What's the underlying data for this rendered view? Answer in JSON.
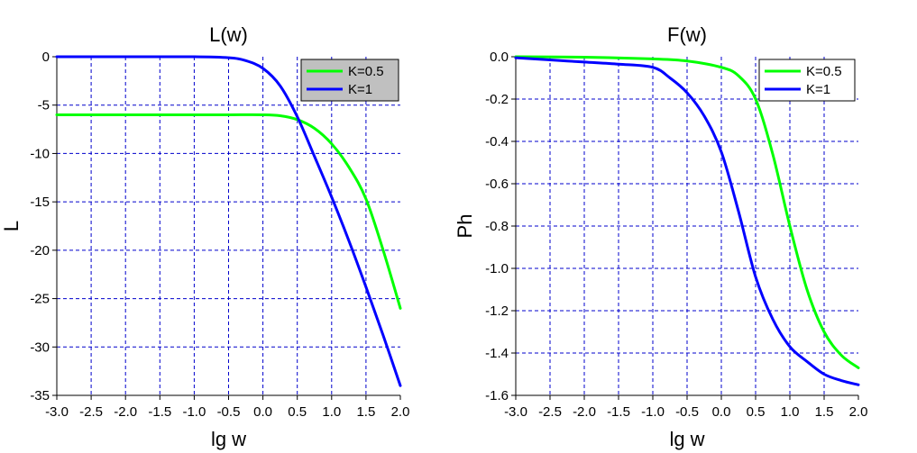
{
  "chart_data": [
    {
      "type": "line",
      "title": "L(w)",
      "xlabel": "lg w",
      "ylabel": "L",
      "xlim": [
        -3.0,
        2.0
      ],
      "ylim": [
        -35,
        0
      ],
      "x_ticks": [
        "-3.0",
        "-2.5",
        "-2.0",
        "-1.5",
        "-1.0",
        "-0.5",
        "0.0",
        "0.5",
        "1.0",
        "1.5",
        "2.0"
      ],
      "y_ticks": [
        "0",
        "-5",
        "-10",
        "-15",
        "-20",
        "-25",
        "-30",
        "-35"
      ],
      "x_tick_values": [
        -3.0,
        -2.5,
        -2.0,
        -1.5,
        -1.0,
        -0.5,
        0.0,
        0.5,
        1.0,
        1.5,
        2.0
      ],
      "y_tick_values": [
        0,
        -5,
        -10,
        -15,
        -20,
        -25,
        -30,
        -35
      ],
      "grid": true,
      "legend": "top-right",
      "legend_background": "#c0c0c0",
      "series": [
        {
          "name": "K=0.5",
          "color": "#00ff00",
          "points": [
            [
              -3.0,
              -6.0
            ],
            [
              -2.0,
              -6.0
            ],
            [
              -1.0,
              -6.0
            ],
            [
              -0.5,
              -6.0
            ],
            [
              0.0,
              -6.0
            ],
            [
              0.25,
              -6.1
            ],
            [
              0.5,
              -6.5
            ],
            [
              0.75,
              -7.4
            ],
            [
              1.0,
              -9.0
            ],
            [
              1.25,
              -11.4
            ],
            [
              1.5,
              -14.7
            ],
            [
              1.75,
              -20.0
            ],
            [
              2.0,
              -26.0
            ]
          ]
        },
        {
          "name": "K=1",
          "color": "#0000ff",
          "points": [
            [
              -3.0,
              0.0
            ],
            [
              -2.0,
              0.0
            ],
            [
              -1.0,
              0.0
            ],
            [
              -0.5,
              -0.1
            ],
            [
              -0.25,
              -0.4
            ],
            [
              0.0,
              -1.2
            ],
            [
              0.25,
              -3.0
            ],
            [
              0.5,
              -6.2
            ],
            [
              0.75,
              -10.3
            ],
            [
              1.0,
              -14.5
            ],
            [
              1.25,
              -19.0
            ],
            [
              1.5,
              -23.8
            ],
            [
              1.75,
              -28.8
            ],
            [
              2.0,
              -34.0
            ]
          ]
        }
      ]
    },
    {
      "type": "line",
      "title": "F(w)",
      "xlabel": "lg w",
      "ylabel": "Ph",
      "xlim": [
        -3.0,
        2.0
      ],
      "ylim": [
        -1.6,
        0.0
      ],
      "x_ticks": [
        "-3.0",
        "-2.5",
        "-2.0",
        "-1.5",
        "-1.0",
        "-0.5",
        "0.0",
        "0.5",
        "1.0",
        "1.5",
        "2.0"
      ],
      "y_ticks": [
        "0.0",
        "-0.2",
        "-0.4",
        "-0.6",
        "-0.8",
        "-1.0",
        "-1.2",
        "-1.4",
        "-1.6"
      ],
      "x_tick_values": [
        -3.0,
        -2.5,
        -2.0,
        -1.5,
        -1.0,
        -0.5,
        0.0,
        0.5,
        1.0,
        1.5,
        2.0
      ],
      "y_tick_values": [
        0.0,
        -0.2,
        -0.4,
        -0.6,
        -0.8,
        -1.0,
        -1.2,
        -1.4,
        -1.6
      ],
      "grid": true,
      "legend": "top-right",
      "legend_background": "#ffffff",
      "series": [
        {
          "name": "K=0.5",
          "color": "#00ff00",
          "points": [
            [
              -3.0,
              0.0
            ],
            [
              -2.0,
              -0.002
            ],
            [
              -1.0,
              -0.01
            ],
            [
              -0.5,
              -0.02
            ],
            [
              0.0,
              -0.05
            ],
            [
              0.25,
              -0.09
            ],
            [
              0.5,
              -0.2
            ],
            [
              0.75,
              -0.46
            ],
            [
              1.0,
              -0.8
            ],
            [
              1.25,
              -1.1
            ],
            [
              1.5,
              -1.3
            ],
            [
              1.75,
              -1.41
            ],
            [
              2.0,
              -1.47
            ]
          ]
        },
        {
          "name": "K=1",
          "color": "#0000ff",
          "points": [
            [
              -3.0,
              -0.005
            ],
            [
              -2.5,
              -0.015
            ],
            [
              -2.0,
              -0.025
            ],
            [
              -1.5,
              -0.035
            ],
            [
              -1.0,
              -0.05
            ],
            [
              -0.75,
              -0.1
            ],
            [
              -0.5,
              -0.17
            ],
            [
              -0.25,
              -0.28
            ],
            [
              0.0,
              -0.45
            ],
            [
              0.25,
              -0.73
            ],
            [
              0.5,
              -1.04
            ],
            [
              0.75,
              -1.24
            ],
            [
              1.0,
              -1.37
            ],
            [
              1.25,
              -1.44
            ],
            [
              1.5,
              -1.5
            ],
            [
              1.75,
              -1.53
            ],
            [
              2.0,
              -1.55
            ]
          ]
        }
      ]
    }
  ]
}
